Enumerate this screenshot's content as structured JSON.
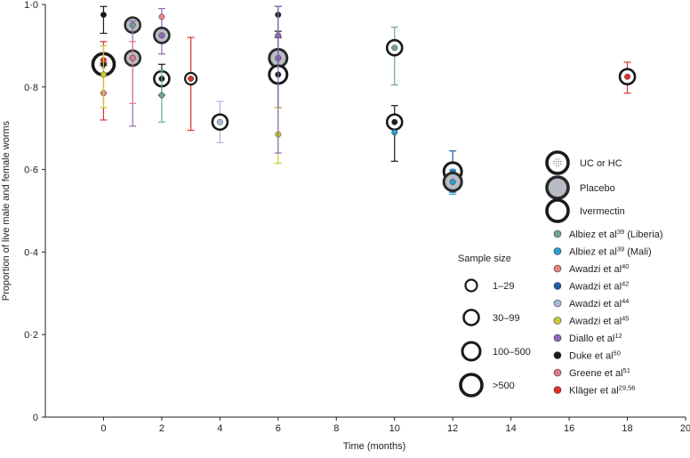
{
  "chart_data": {
    "type": "scatter",
    "xlabel": "Time (months)",
    "ylabel": "Proportion of live male and female worms",
    "xlim": [
      -2,
      20
    ],
    "ylim": [
      0,
      1.0
    ],
    "xticks": [
      0,
      2,
      4,
      6,
      8,
      10,
      12,
      14,
      16,
      18,
      20
    ],
    "xtick_labels": [
      "0",
      "2",
      "4",
      "6",
      "8",
      "10",
      "12",
      "14",
      "16",
      "18",
      "20"
    ],
    "yticks": [
      0,
      0.2,
      0.4,
      0.6,
      0.8,
      1.0
    ],
    "ytick_labels": [
      "0",
      "0·2",
      "0·4",
      "0·6",
      "0·8",
      "1·0"
    ],
    "grid": false,
    "arms_legend": [
      {
        "label": "UC or HC",
        "style": "uc"
      },
      {
        "label": "Placebo",
        "style": "placebo"
      },
      {
        "label": "Ivermectin",
        "style": "ivermectin"
      }
    ],
    "studies": [
      {
        "name": "Albiez et al",
        "ref": "39",
        "suffix": " (Liberia)",
        "color": "#6fa78f"
      },
      {
        "name": "Albiez et al",
        "ref": "39",
        "suffix": " (Mali)",
        "color": "#2a9fd0"
      },
      {
        "name": "Awadzi et al",
        "ref": "40",
        "suffix": "",
        "color": "#e88282"
      },
      {
        "name": "Awadzi et al",
        "ref": "42",
        "suffix": "",
        "color": "#1f5fa8"
      },
      {
        "name": "Awadzi et al",
        "ref": "44",
        "suffix": "",
        "color": "#aab8e0"
      },
      {
        "name": "Awadzi et al",
        "ref": "45",
        "suffix": "",
        "color": "#c8cc30"
      },
      {
        "name": "Diallo et al",
        "ref": "12",
        "suffix": "",
        "color": "#9068b8"
      },
      {
        "name": "Duke et al",
        "ref": "50",
        "suffix": "",
        "color": "#1a1a1a"
      },
      {
        "name": "Greene et al",
        "ref": "51",
        "suffix": "",
        "color": "#e07890"
      },
      {
        "name": "Kläger et al",
        "ref": "29,56",
        "suffix": "",
        "color": "#e03028"
      }
    ],
    "sample_size": {
      "title": "Sample size",
      "labels": [
        "1–29",
        "30–99",
        "100–500",
        ">500"
      ]
    },
    "points": [
      {
        "x": 0,
        "y": 0.855,
        "arm": "uc",
        "size": 4,
        "study": 7
      },
      {
        "x": 0,
        "y": 0.975,
        "lo": 0.93,
        "hi": 0.995,
        "arm": "none",
        "size": 0,
        "study": 7
      },
      {
        "x": 0,
        "y": 0.865,
        "lo": 0.72,
        "hi": 0.91,
        "arm": "none",
        "size": 0,
        "study": 9
      },
      {
        "x": 0,
        "y": 0.785,
        "arm": "none",
        "size": 0,
        "study": 2
      },
      {
        "x": 0,
        "y": 0.83,
        "lo": 0.75,
        "hi": 0.9,
        "arm": "none",
        "size": 0,
        "study": 5
      },
      {
        "x": 1,
        "y": 0.95,
        "lo": 0.935,
        "hi": 0.96,
        "arm": "placebo",
        "size": 2,
        "study": 0
      },
      {
        "x": 1,
        "y": 0.87,
        "lo": 0.705,
        "hi": 0.96,
        "arm": "placebo",
        "size": 2,
        "study": 6
      },
      {
        "x": 1,
        "y": 0.87,
        "lo": 0.76,
        "hi": 0.91,
        "arm": "none",
        "size": 0,
        "study": 8
      },
      {
        "x": 2,
        "y": 0.925,
        "lo": 0.88,
        "hi": 0.99,
        "arm": "placebo",
        "size": 2,
        "study": 6
      },
      {
        "x": 2,
        "y": 0.97,
        "arm": "none",
        "size": 0,
        "study": 2
      },
      {
        "x": 2,
        "y": 0.82,
        "lo": 0.78,
        "hi": 0.855,
        "arm": "ivermectin",
        "size": 2,
        "study": 7
      },
      {
        "x": 2,
        "y": 0.78,
        "lo": 0.715,
        "hi": 0.84,
        "arm": "none",
        "size": 0,
        "study": 0
      },
      {
        "x": 3,
        "y": 0.82,
        "lo": 0.695,
        "hi": 0.92,
        "arm": "ivermectin",
        "size": 1,
        "study": 9
      },
      {
        "x": 4,
        "y": 0.715,
        "lo": 0.665,
        "hi": 0.765,
        "arm": "ivermectin",
        "size": 2,
        "study": 4
      },
      {
        "x": 6,
        "y": 0.975,
        "lo": 0.935,
        "hi": 0.995,
        "arm": "none",
        "size": 0,
        "study": 7
      },
      {
        "x": 6,
        "y": 0.87,
        "lo": 0.83,
        "hi": 0.995,
        "arm": "placebo",
        "size": 3,
        "study": 6
      },
      {
        "x": 6,
        "y": 0.83,
        "lo": 0.75,
        "hi": 0.92,
        "arm": "ivermectin",
        "size": 3,
        "study": 7
      },
      {
        "x": 6,
        "y": 0.685,
        "lo": 0.615,
        "hi": 0.75,
        "arm": "none",
        "size": 0,
        "study": 5
      },
      {
        "x": 6,
        "y": 0.925,
        "lo": 0.64,
        "hi": 0.995,
        "arm": "none",
        "size": 0,
        "study": 6
      },
      {
        "x": 10,
        "y": 0.895,
        "lo": 0.805,
        "hi": 0.945,
        "arm": "ivermectin",
        "size": 2,
        "study": 0
      },
      {
        "x": 10,
        "y": 0.715,
        "lo": 0.62,
        "hi": 0.755,
        "arm": "ivermectin",
        "size": 2,
        "study": 7
      },
      {
        "x": 10,
        "y": 0.69,
        "arm": "none",
        "size": 0,
        "study": 1
      },
      {
        "x": 12,
        "y": 0.595,
        "lo": 0.545,
        "hi": 0.645,
        "arm": "ivermectin",
        "size": 3,
        "study": 3
      },
      {
        "x": 12,
        "y": 0.57,
        "lo": 0.54,
        "hi": 0.6,
        "arm": "placebo",
        "size": 3,
        "study": 1
      },
      {
        "x": 18,
        "y": 0.825,
        "lo": 0.785,
        "hi": 0.86,
        "arm": "ivermectin",
        "size": 2,
        "study": 9
      }
    ]
  }
}
